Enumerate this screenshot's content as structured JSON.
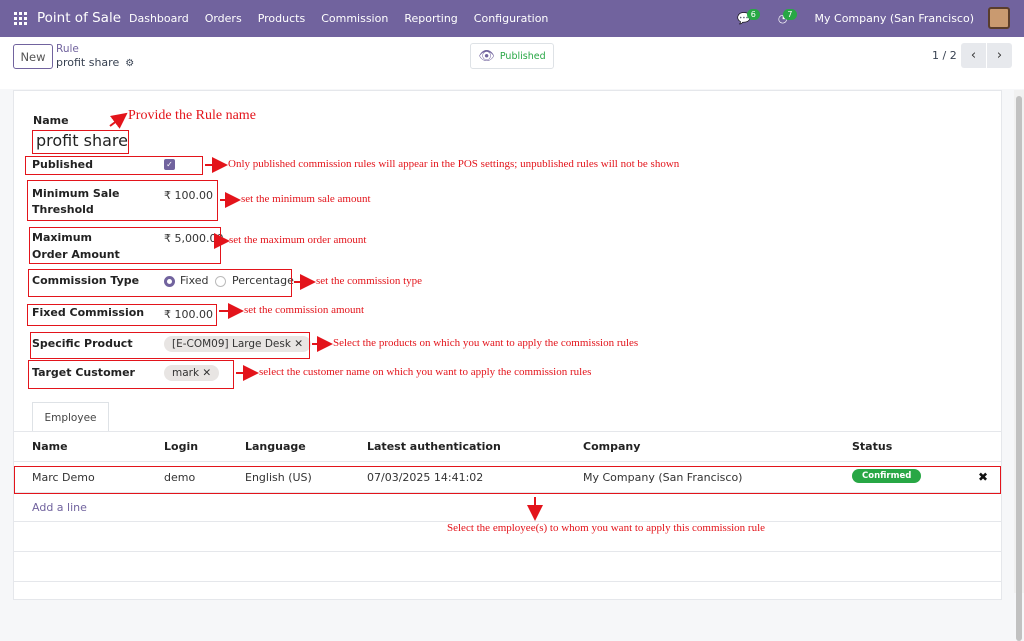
{
  "navbar": {
    "app": "Point of Sale",
    "menu": [
      "Dashboard",
      "Orders",
      "Products",
      "Commission",
      "Reporting",
      "Configuration"
    ],
    "messages_count": "6",
    "activities_count": "7",
    "company": "My Company (San Francisco)"
  },
  "control": {
    "new_label": "New",
    "breadcrumb_parent": "Rule",
    "breadcrumb_current": "profit share",
    "published_label": "Published",
    "pager": "1 / 2"
  },
  "form": {
    "name_label": "Name",
    "name_value": "profit share",
    "published_label": "Published",
    "published": true,
    "min_label": "Minimum Sale Threshold",
    "min_value": "₹ 100.00",
    "max_label": "Maximum Order Amount",
    "max_value": "₹ 5,000.00",
    "type_label": "Commission Type",
    "type_options": [
      "Fixed",
      "Percentage"
    ],
    "type_selected": "Fixed",
    "fixed_label": "Fixed Commission",
    "fixed_value": "₹ 100.00",
    "product_label": "Specific Product",
    "product_tag": "[E-COM09] Large Desk",
    "customer_label": "Target Customer",
    "customer_tag": "mark"
  },
  "tabs": [
    "Employee"
  ],
  "table": {
    "columns": [
      "Name",
      "Login",
      "Language",
      "Latest authentication",
      "Company",
      "Status"
    ],
    "rows": [
      {
        "name": "Marc Demo",
        "login": "demo",
        "language": "English (US)",
        "auth": "07/03/2025 14:41:02",
        "company": "My Company (San Francisco)",
        "status": "Confirmed"
      }
    ],
    "add_line": "Add a line"
  },
  "annotations": {
    "name": "Provide the Rule name",
    "published": "Only published commission rules will appear in the POS settings; unpublished rules will not be shown",
    "min": "set the minimum sale amount",
    "max": "set the maximum order amount",
    "type": "set the commission type",
    "fixed": "set the commission amount",
    "product": "Select the products on which you want to apply the commission rules",
    "customer": "select the customer name on which you want to apply the commission rules",
    "employee": "Select the employee(s) to whom you want to apply this commission rule"
  },
  "colors": {
    "brand": "#71639e",
    "annotation": "#e3141b",
    "success": "#28a745"
  }
}
